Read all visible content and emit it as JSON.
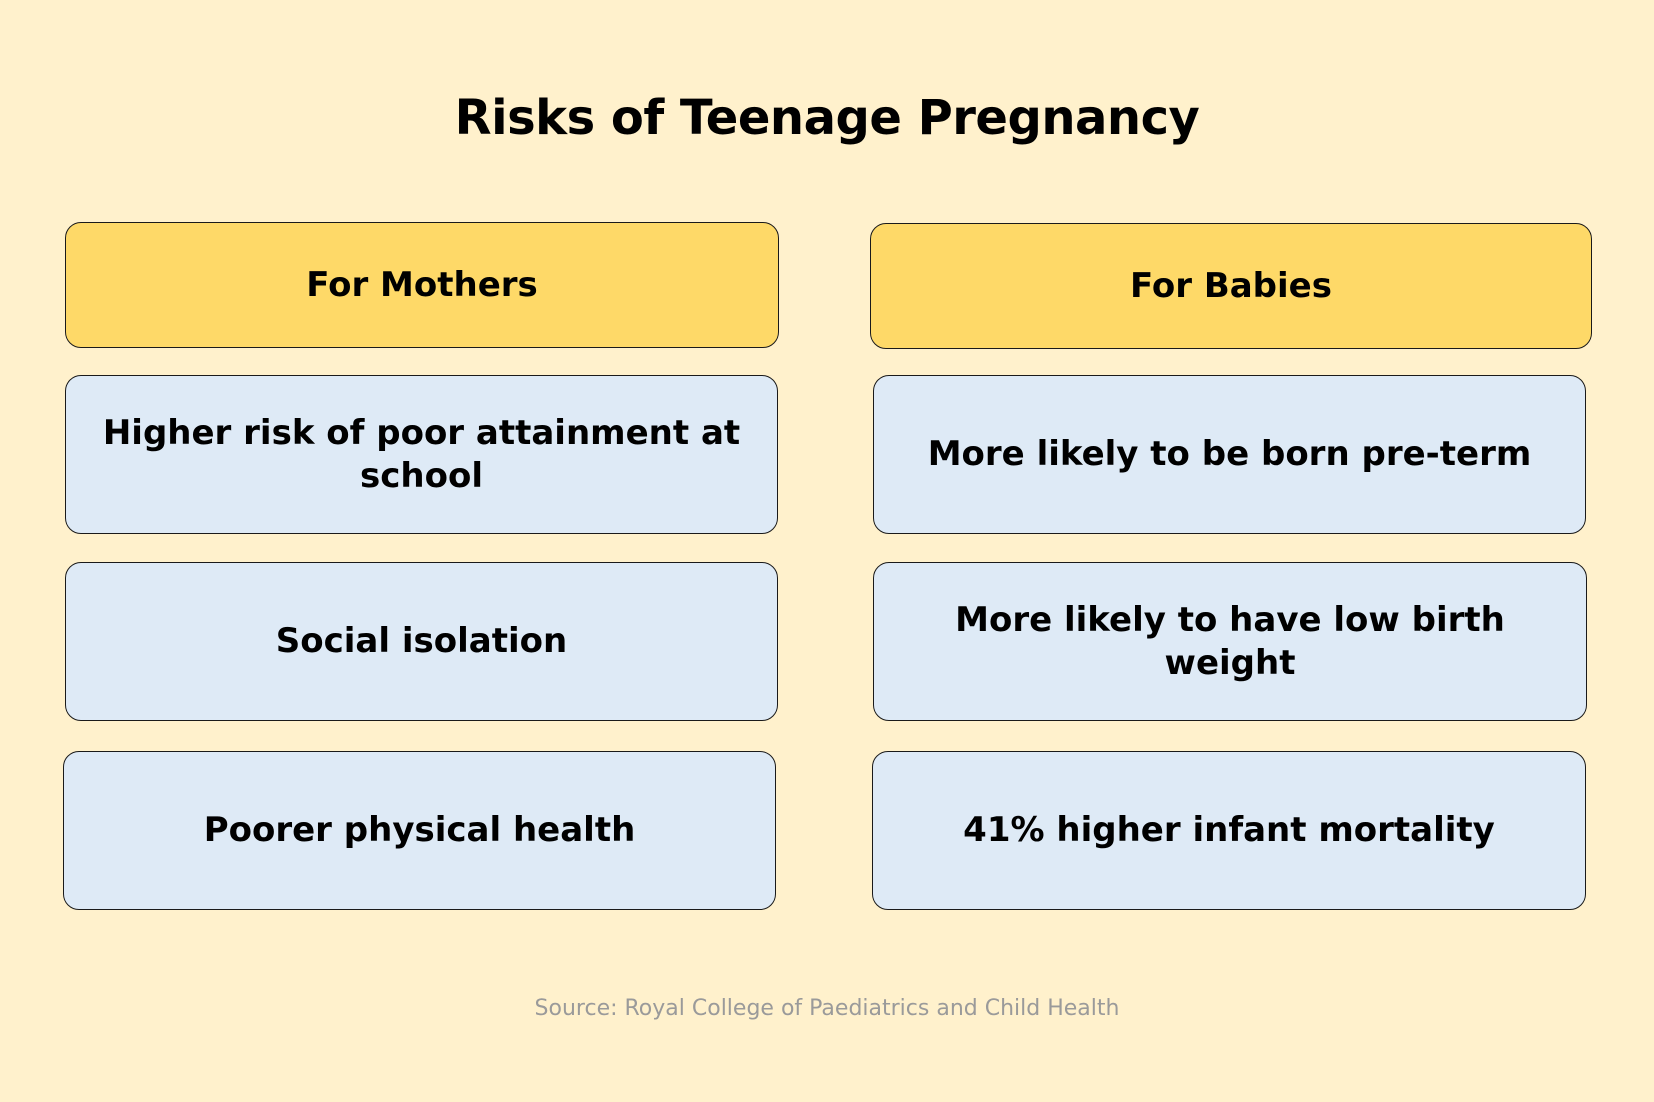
{
  "title": "Risks of Teenage Pregnancy",
  "columns": [
    {
      "header": "For Mothers",
      "items": [
        "Higher risk of poor attainment at school",
        "Social isolation",
        "Poorer physical health"
      ]
    },
    {
      "header": "For Babies",
      "items": [
        "More likely to be born pre-term",
        "More likely to have low birth weight",
        "41% higher infant mortality"
      ]
    }
  ],
  "source": "Source: Royal College of Paediatrics and Child Health",
  "colors": {
    "background": "#fff1cc",
    "header_fill": "#fed968",
    "item_fill": "#deeaf6",
    "border": "#1a1a1a",
    "source_text": "#9a9a9a"
  }
}
